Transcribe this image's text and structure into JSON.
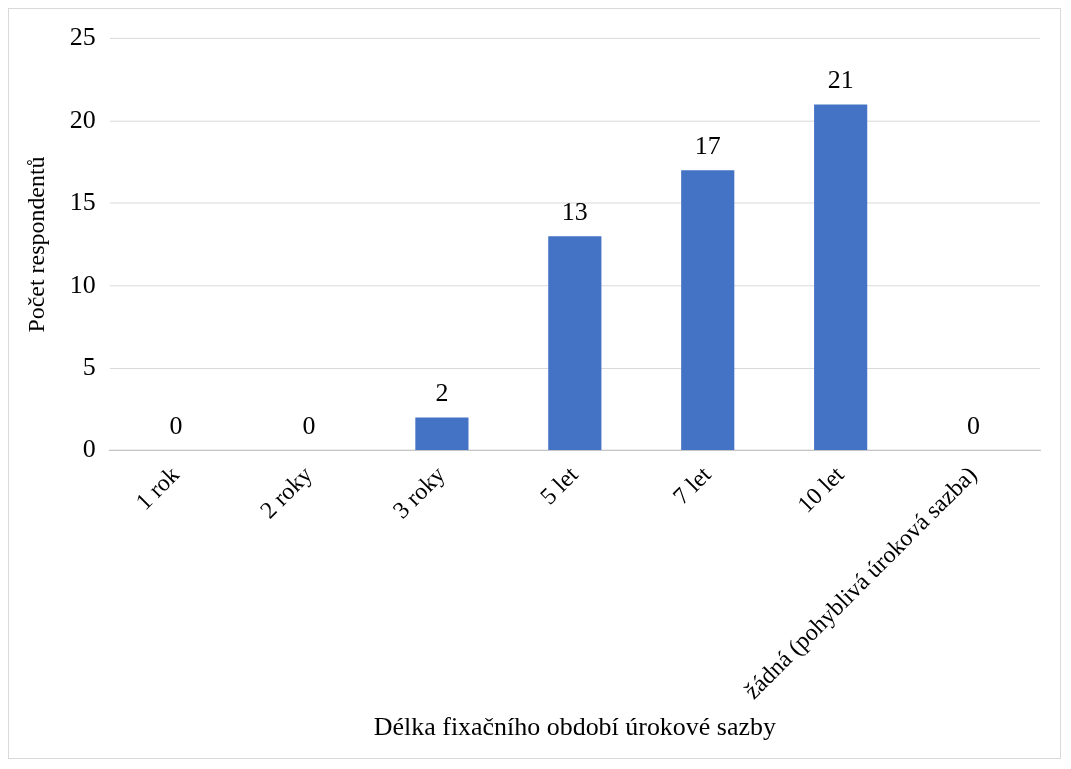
{
  "chart_data": {
    "type": "bar",
    "xlabel": "Délka fixačního období úrokové sazby",
    "ylabel": "Počet respondentů",
    "categories": [
      "1 rok",
      "2 roky",
      "3 roky",
      "5 let",
      "7 let",
      "10 let",
      "žádná (pohyblivá úroková sazba)"
    ],
    "values": [
      0,
      0,
      2,
      13,
      17,
      21,
      0
    ],
    "color": "#4472c4",
    "ylim": [
      0,
      25
    ],
    "yticks": [
      0,
      5,
      10,
      15,
      20,
      25
    ],
    "grid": "y",
    "data_labels": true,
    "legend": false
  }
}
